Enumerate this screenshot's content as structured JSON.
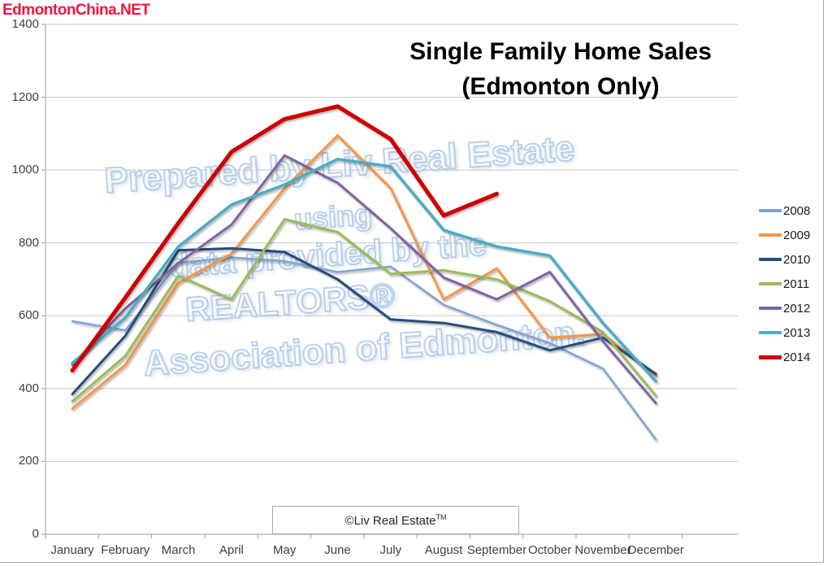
{
  "page": {
    "site_tag": "EdmontonChina.NET",
    "title_line1": "Single Family Home Sales",
    "title_line2": "(Edmonton Only)",
    "footer_label": "©Liv Real Estate",
    "footer_tm": "TM",
    "watermark_lines": [
      "Prepared by Liv Real Estate",
      "using",
      "data provided by the",
      "REALTORS®",
      "Association of Edmonton."
    ]
  },
  "chart_data": {
    "type": "line",
    "title": "Single Family Home Sales (Edmonton Only)",
    "xlabel": "",
    "ylabel": "",
    "ylim": [
      0,
      1400
    ],
    "ytick_step": 200,
    "grid": true,
    "legend_position": "right",
    "categories": [
      "January",
      "February",
      "March",
      "April",
      "May",
      "June",
      "July",
      "August",
      "September",
      "October",
      "November",
      "December"
    ],
    "series": [
      {
        "name": "2008",
        "color": "#7ca5d8",
        "width": 2.5,
        "values": [
          585,
          560,
          745,
          760,
          750,
          720,
          735,
          630,
          575,
          525,
          455,
          260
        ]
      },
      {
        "name": "2009",
        "color": "#f79646",
        "width": 3,
        "values": [
          345,
          465,
          690,
          770,
          950,
          1095,
          950,
          645,
          730,
          540,
          550,
          435
        ]
      },
      {
        "name": "2010",
        "color": "#254e7b",
        "width": 3,
        "values": [
          385,
          545,
          780,
          785,
          775,
          700,
          590,
          580,
          555,
          505,
          540,
          440
        ]
      },
      {
        "name": "2011",
        "color": "#9bbb59",
        "width": 3,
        "values": [
          365,
          490,
          710,
          645,
          865,
          830,
          715,
          725,
          700,
          640,
          555,
          380
        ]
      },
      {
        "name": "2012",
        "color": "#8064a2",
        "width": 3,
        "values": [
          465,
          620,
          745,
          850,
          1040,
          965,
          840,
          705,
          645,
          720,
          530,
          360
        ]
      },
      {
        "name": "2013",
        "color": "#4bacc6",
        "width": 3.5,
        "values": [
          470,
          595,
          790,
          905,
          960,
          1030,
          1010,
          835,
          790,
          765,
          580,
          420
        ]
      },
      {
        "name": "2014",
        "color": "#cc0000",
        "width": 5,
        "values": [
          450,
          650,
          855,
          1050,
          1140,
          1175,
          1085,
          875,
          935,
          null,
          null,
          null
        ]
      }
    ]
  }
}
